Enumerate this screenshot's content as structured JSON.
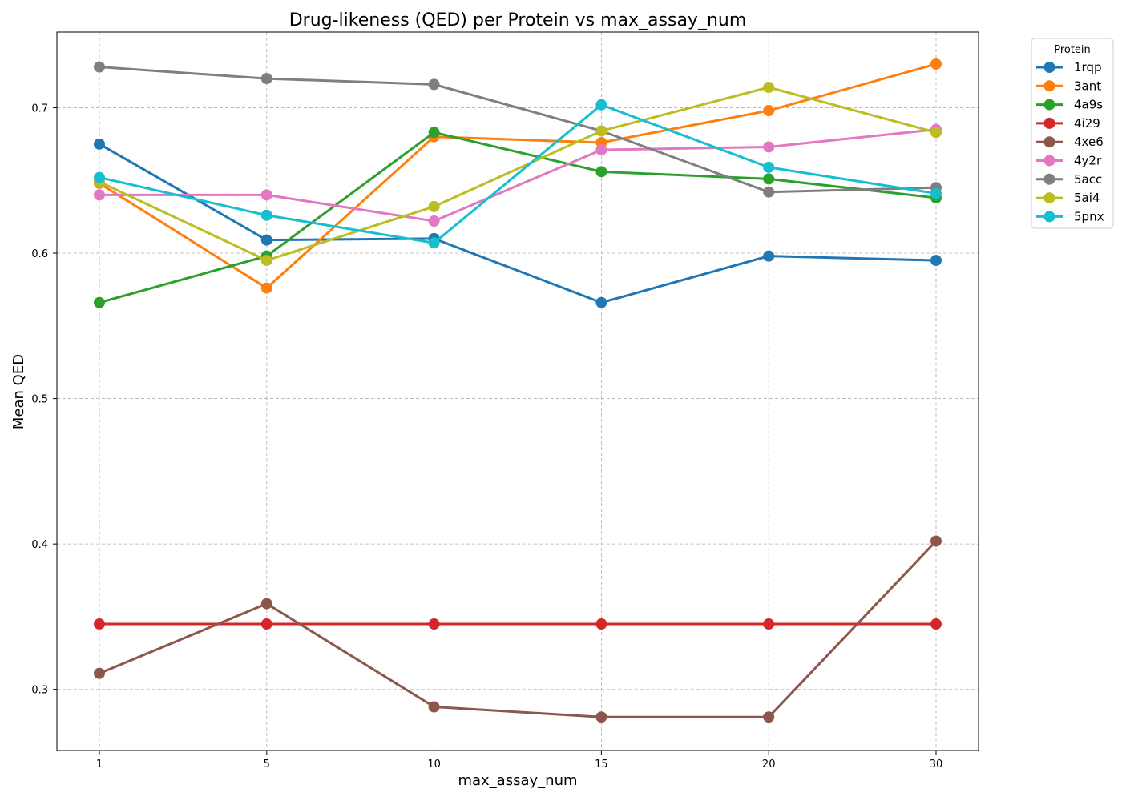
{
  "chart_data": {
    "type": "line",
    "title": "Drug-likeness (QED) per Protein vs max_assay_num",
    "xlabel": "max_assay_num",
    "ylabel": "Mean QED",
    "x": [
      1,
      5,
      10,
      15,
      20,
      30
    ],
    "x_tick_labels": [
      "1",
      "5",
      "10",
      "15",
      "20",
      "30"
    ],
    "y_ticks": [
      0.3,
      0.4,
      0.5,
      0.6,
      0.7
    ],
    "y_tick_labels": [
      "0.3",
      "0.4",
      "0.5",
      "0.6",
      "0.7"
    ],
    "ylim": [
      0.258,
      0.752
    ],
    "grid": true,
    "legend": {
      "title": "Protein",
      "placement": "outside-top-right"
    },
    "series": [
      {
        "name": "1rqp",
        "color": "#1f77b4",
        "values": [
          0.675,
          0.609,
          0.61,
          0.566,
          0.598,
          0.595
        ]
      },
      {
        "name": "3ant",
        "color": "#ff7f0e",
        "values": [
          0.648,
          0.576,
          0.68,
          0.676,
          0.698,
          0.73
        ]
      },
      {
        "name": "4a9s",
        "color": "#2ca02c",
        "values": [
          0.566,
          0.598,
          0.683,
          0.656,
          0.651,
          0.638
        ]
      },
      {
        "name": "4i29",
        "color": "#d62728",
        "values": [
          0.345,
          0.345,
          0.345,
          0.345,
          0.345,
          0.345
        ]
      },
      {
        "name": "4xe6",
        "color": "#8c564b",
        "values": [
          0.311,
          0.359,
          0.288,
          0.281,
          0.281,
          0.402
        ]
      },
      {
        "name": "4y2r",
        "color": "#e377c2",
        "values": [
          0.64,
          0.64,
          0.622,
          0.671,
          0.673,
          0.685
        ]
      },
      {
        "name": "5acc",
        "color": "#7f7f7f",
        "values": [
          0.728,
          0.72,
          0.716,
          0.684,
          0.642,
          0.645
        ]
      },
      {
        "name": "5ai4",
        "color": "#bcbd22",
        "values": [
          0.649,
          0.595,
          0.632,
          0.684,
          0.714,
          0.683
        ]
      },
      {
        "name": "5pnx",
        "color": "#17becf",
        "values": [
          0.652,
          0.626,
          0.607,
          0.702,
          0.659,
          0.641
        ]
      }
    ]
  }
}
